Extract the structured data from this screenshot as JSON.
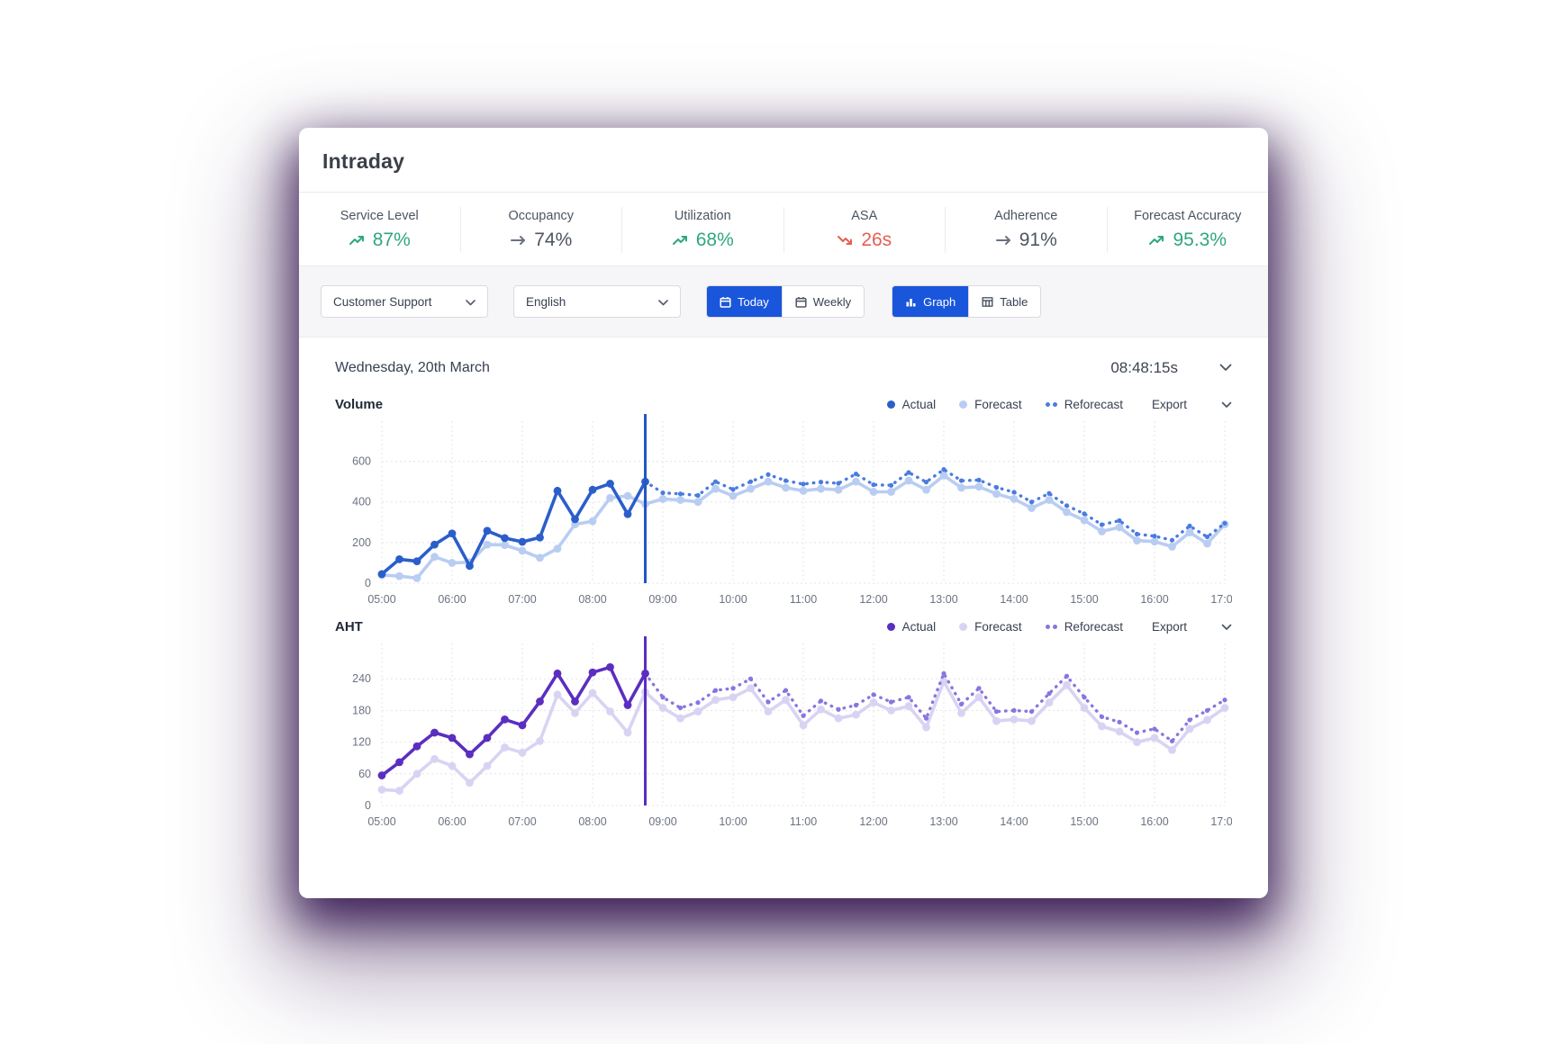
{
  "header": {
    "title": "Intraday"
  },
  "kpis": [
    {
      "label": "Service Level",
      "value": "87%",
      "trend": "up",
      "color": "green"
    },
    {
      "label": "Occupancy",
      "value": "74%",
      "trend": "flat",
      "color": "neutral"
    },
    {
      "label": "Utilization",
      "value": "68%",
      "trend": "up",
      "color": "green"
    },
    {
      "label": "ASA",
      "value": "26s",
      "trend": "down",
      "color": "red"
    },
    {
      "label": "Adherence",
      "value": "91%",
      "trend": "flat",
      "color": "neutral"
    },
    {
      "label": "Forecast Accuracy",
      "value": "95.3%",
      "trend": "up",
      "color": "green"
    }
  ],
  "filters": {
    "queue_select": "Customer Support",
    "language_select": "English",
    "period_toggle": [
      {
        "label": "Today",
        "active": true,
        "icon": "calendar"
      },
      {
        "label": "Weekly",
        "active": false,
        "icon": "calendar"
      }
    ],
    "view_toggle": [
      {
        "label": "Graph",
        "active": true,
        "icon": "bar-chart"
      },
      {
        "label": "Table",
        "active": false,
        "icon": "table"
      }
    ]
  },
  "chart_header": {
    "date": "Wednesday, 20th March",
    "time": "08:48:15s"
  },
  "legend": {
    "actual": "Actual",
    "forecast": "Forecast",
    "reforecast": "Reforecast",
    "export": "Export"
  },
  "colors": {
    "accent_blue": "#1a56db",
    "kpi_green": "#2fa77b",
    "kpi_red": "#e85d52",
    "kpi_neutral": "#6b7280"
  },
  "chart_data": [
    {
      "type": "line",
      "title": "Volume",
      "x_tick_labels": [
        "05:00",
        "06:00",
        "07:00",
        "08:00",
        "09:00",
        "10:00",
        "11:00",
        "12:00",
        "13:00",
        "14:00",
        "15:00",
        "16:00",
        "17:00"
      ],
      "interval_minutes": 15,
      "points_total": 49,
      "y_ticks": [
        0,
        200,
        400,
        600
      ],
      "ylim": [
        0,
        780
      ],
      "grid": true,
      "legend_position": "top-right",
      "marker_time": "08:45",
      "marker_index": 15,
      "colors": {
        "actual": "#2b5ecb",
        "forecast": "#b9cdf2",
        "reforecast": "#4a7ce0",
        "marker": "#2456c4"
      },
      "series": [
        {
          "name": "Forecast",
          "style": "solid",
          "start_index": 0,
          "values": [
            40,
            35,
            25,
            130,
            100,
            103,
            190,
            188,
            160,
            125,
            170,
            290,
            305,
            420,
            430,
            390,
            415,
            410,
            400,
            465,
            430,
            465,
            500,
            470,
            455,
            465,
            460,
            500,
            450,
            450,
            505,
            460,
            530,
            470,
            475,
            440,
            415,
            370,
            410,
            350,
            310,
            255,
            275,
            210,
            205,
            180,
            250,
            195,
            290
          ]
        },
        {
          "name": "Reforecast",
          "style": "dotted",
          "start_index": 15,
          "values": [
            500,
            445,
            440,
            432,
            500,
            462,
            500,
            535,
            505,
            488,
            498,
            492,
            538,
            485,
            482,
            545,
            498,
            560,
            505,
            508,
            472,
            448,
            400,
            442,
            382,
            342,
            288,
            308,
            242,
            232,
            212,
            282,
            228,
            295
          ]
        },
        {
          "name": "Actual",
          "style": "solid",
          "start_index": 0,
          "values": [
            45,
            118,
            108,
            190,
            245,
            85,
            258,
            222,
            204,
            225,
            455,
            315,
            460,
            490,
            340,
            500
          ]
        }
      ]
    },
    {
      "type": "line",
      "title": "AHT",
      "x_tick_labels": [
        "05:00",
        "06:00",
        "07:00",
        "08:00",
        "09:00",
        "10:00",
        "11:00",
        "12:00",
        "13:00",
        "14:00",
        "15:00",
        "16:00",
        "17:00"
      ],
      "interval_minutes": 15,
      "points_total": 49,
      "y_ticks": [
        0,
        60,
        120,
        180,
        240
      ],
      "ylim": [
        0,
        300
      ],
      "grid": true,
      "legend_position": "top-right",
      "marker_time": "08:45",
      "marker_index": 15,
      "colors": {
        "actual": "#5b2ec0",
        "forecast": "#d9d3f3",
        "reforecast": "#8b74e0",
        "marker": "#5b2ec0"
      },
      "series": [
        {
          "name": "Forecast",
          "style": "solid",
          "start_index": 0,
          "values": [
            30,
            28,
            60,
            88,
            75,
            43,
            75,
            110,
            100,
            122,
            210,
            175,
            213,
            178,
            138,
            215,
            185,
            165,
            178,
            200,
            205,
            222,
            178,
            200,
            152,
            182,
            165,
            172,
            195,
            180,
            188,
            148,
            235,
            175,
            205,
            160,
            163,
            160,
            195,
            228,
            185,
            150,
            140,
            120,
            128,
            105,
            145,
            162,
            185
          ]
        },
        {
          "name": "Reforecast",
          "style": "dotted",
          "start_index": 15,
          "values": [
            250,
            205,
            185,
            195,
            218,
            222,
            240,
            196,
            218,
            170,
            198,
            182,
            190,
            210,
            196,
            205,
            165,
            250,
            192,
            222,
            178,
            180,
            178,
            212,
            245,
            205,
            168,
            158,
            138,
            145,
            122,
            162,
            180,
            200
          ]
        },
        {
          "name": "Actual",
          "style": "solid",
          "start_index": 0,
          "values": [
            57,
            82,
            112,
            138,
            128,
            97,
            128,
            163,
            152,
            197,
            250,
            197,
            252,
            262,
            190,
            250
          ]
        }
      ]
    }
  ]
}
